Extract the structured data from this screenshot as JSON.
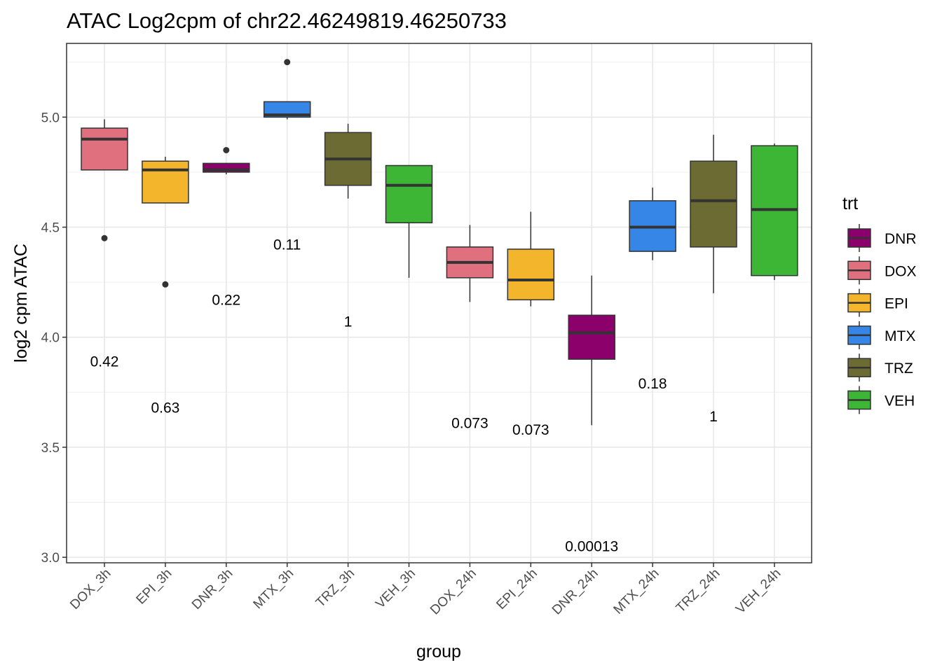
{
  "chart_data": {
    "type": "box",
    "title": "ATAC Log2cpm of chr22.46249819.46250733",
    "xlabel": "group",
    "ylabel": "log2 cpm ATAC",
    "ylim": [
      3.0,
      5.3
    ],
    "yticks": [
      "3.0",
      "3.5",
      "4.0",
      "4.5",
      "5.0"
    ],
    "ytick_values": [
      3.0,
      3.5,
      4.0,
      4.5,
      5.0
    ],
    "grid": true,
    "legend_position": "right",
    "legend_title": "trt",
    "legend": [
      {
        "label": "DNR",
        "color": "#8B006B"
      },
      {
        "label": "DOX",
        "color": "#E0707E"
      },
      {
        "label": "EPI",
        "color": "#F2B52B"
      },
      {
        "label": "MTX",
        "color": "#3586E6"
      },
      {
        "label": "TRZ",
        "color": "#6B6B33"
      },
      {
        "label": "VEH",
        "color": "#3DB535"
      }
    ],
    "groups": [
      {
        "category": "DOX_3h",
        "trt": "DOX",
        "min": 4.76,
        "q1": 4.76,
        "median": 4.9,
        "q3": 4.95,
        "max": 4.99,
        "outliers": [
          4.45
        ],
        "pval": "0.42",
        "pval_y": 3.89
      },
      {
        "category": "EPI_3h",
        "trt": "EPI",
        "min": 4.61,
        "q1": 4.61,
        "median": 4.76,
        "q3": 4.8,
        "max": 4.82,
        "outliers": [
          4.24
        ],
        "pval": "0.63",
        "pval_y": 3.68
      },
      {
        "category": "DNR_3h",
        "trt": "DNR",
        "min": 4.74,
        "q1": 4.75,
        "median": 4.76,
        "q3": 4.79,
        "max": 4.79,
        "outliers": [
          4.85
        ],
        "pval": "0.22",
        "pval_y": 4.17
      },
      {
        "category": "MTX_3h",
        "trt": "MTX",
        "min": 4.99,
        "q1": 5.0,
        "median": 5.01,
        "q3": 5.07,
        "max": 5.07,
        "outliers": [
          5.25
        ],
        "pval": "0.11",
        "pval_y": 4.42
      },
      {
        "category": "TRZ_3h",
        "trt": "TRZ",
        "min": 4.63,
        "q1": 4.69,
        "median": 4.81,
        "q3": 4.93,
        "max": 4.97,
        "outliers": [],
        "pval": "1",
        "pval_y": 4.07
      },
      {
        "category": "VEH_3h",
        "trt": "VEH",
        "min": 4.27,
        "q1": 4.52,
        "median": 4.69,
        "q3": 4.78,
        "max": 4.78,
        "outliers": [],
        "pval": "",
        "pval_y": 0
      },
      {
        "category": "DOX_24h",
        "trt": "DOX",
        "min": 4.16,
        "q1": 4.27,
        "median": 4.34,
        "q3": 4.41,
        "max": 4.51,
        "outliers": [],
        "pval": "0.073",
        "pval_y": 3.61
      },
      {
        "category": "EPI_24h",
        "trt": "EPI",
        "min": 4.14,
        "q1": 4.17,
        "median": 4.26,
        "q3": 4.4,
        "max": 4.57,
        "outliers": [],
        "pval": "0.073",
        "pval_y": 3.58
      },
      {
        "category": "DNR_24h",
        "trt": "DNR",
        "min": 3.6,
        "q1": 3.9,
        "median": 4.02,
        "q3": 4.1,
        "max": 4.28,
        "outliers": [],
        "pval": "0.00013",
        "pval_y": 3.05
      },
      {
        "category": "MTX_24h",
        "trt": "MTX",
        "min": 4.35,
        "q1": 4.39,
        "median": 4.5,
        "q3": 4.62,
        "max": 4.68,
        "outliers": [],
        "pval": "0.18",
        "pval_y": 3.79
      },
      {
        "category": "TRZ_24h",
        "trt": "TRZ",
        "min": 4.2,
        "q1": 4.41,
        "median": 4.62,
        "q3": 4.8,
        "max": 4.92,
        "outliers": [],
        "pval": "1",
        "pval_y": 3.64
      },
      {
        "category": "VEH_24h",
        "trt": "VEH",
        "min": 4.26,
        "q1": 4.28,
        "median": 4.58,
        "q3": 4.87,
        "max": 4.88,
        "outliers": [],
        "pval": "",
        "pval_y": 0
      }
    ]
  }
}
